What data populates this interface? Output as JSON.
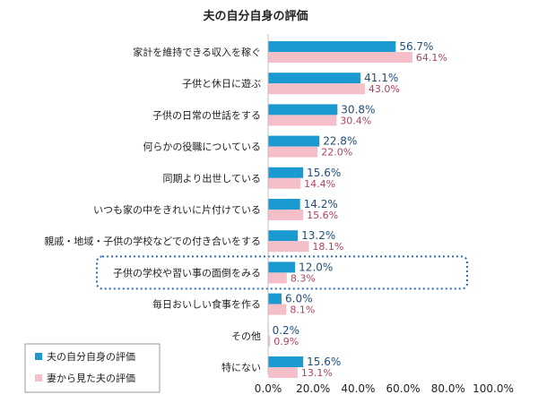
{
  "chart_data": {
    "type": "bar",
    "orientation": "horizontal",
    "title": "夫の自分自身の評価",
    "categories": [
      "家計を維持できる収入を稼ぐ",
      "子供と休日に遊ぶ",
      "子供の日常の世話をする",
      "何らかの役職についている",
      "同期より出世している",
      "いつも家の中をきれいに片付けている",
      "親戚・地域・子供の学校などでの付き合いをする",
      "子供の学校や習い事の面倒をみる",
      "毎日おいしい食事を作る",
      "その他",
      "特にない"
    ],
    "series": [
      {
        "name": "夫の自分自身の評価",
        "color": "#1a9ad0",
        "values": [
          56.7,
          41.1,
          30.8,
          22.8,
          15.6,
          14.2,
          13.2,
          12.0,
          6.0,
          0.2,
          15.6
        ],
        "labels": [
          "56.7%",
          "41.1%",
          "30.8%",
          "22.8%",
          "15.6%",
          "14.2%",
          "13.2%",
          "12.0%",
          "6.0%",
          "0.2%",
          "15.6%"
        ]
      },
      {
        "name": "妻から見た夫の評価",
        "color": "#f5bfca",
        "values": [
          64.1,
          43.0,
          30.4,
          22.0,
          14.4,
          15.6,
          18.1,
          8.3,
          8.1,
          0.9,
          13.1
        ],
        "labels": [
          "64.1%",
          "43.0%",
          "30.4%",
          "22.0%",
          "14.4%",
          "15.6%",
          "18.1%",
          "8.3%",
          "8.1%",
          "0.9%",
          "13.1%"
        ]
      }
    ],
    "xlim": [
      0,
      100
    ],
    "xticks": [
      "0.0%",
      "20.0%",
      "40.0%",
      "60.0%",
      "80.0%",
      "100.0%"
    ],
    "highlighted_category": "子供の学校や習い事の面倒をみる",
    "highlight_color": "#2e6bbf",
    "grid": false,
    "legend_position": "bottom-left"
  }
}
